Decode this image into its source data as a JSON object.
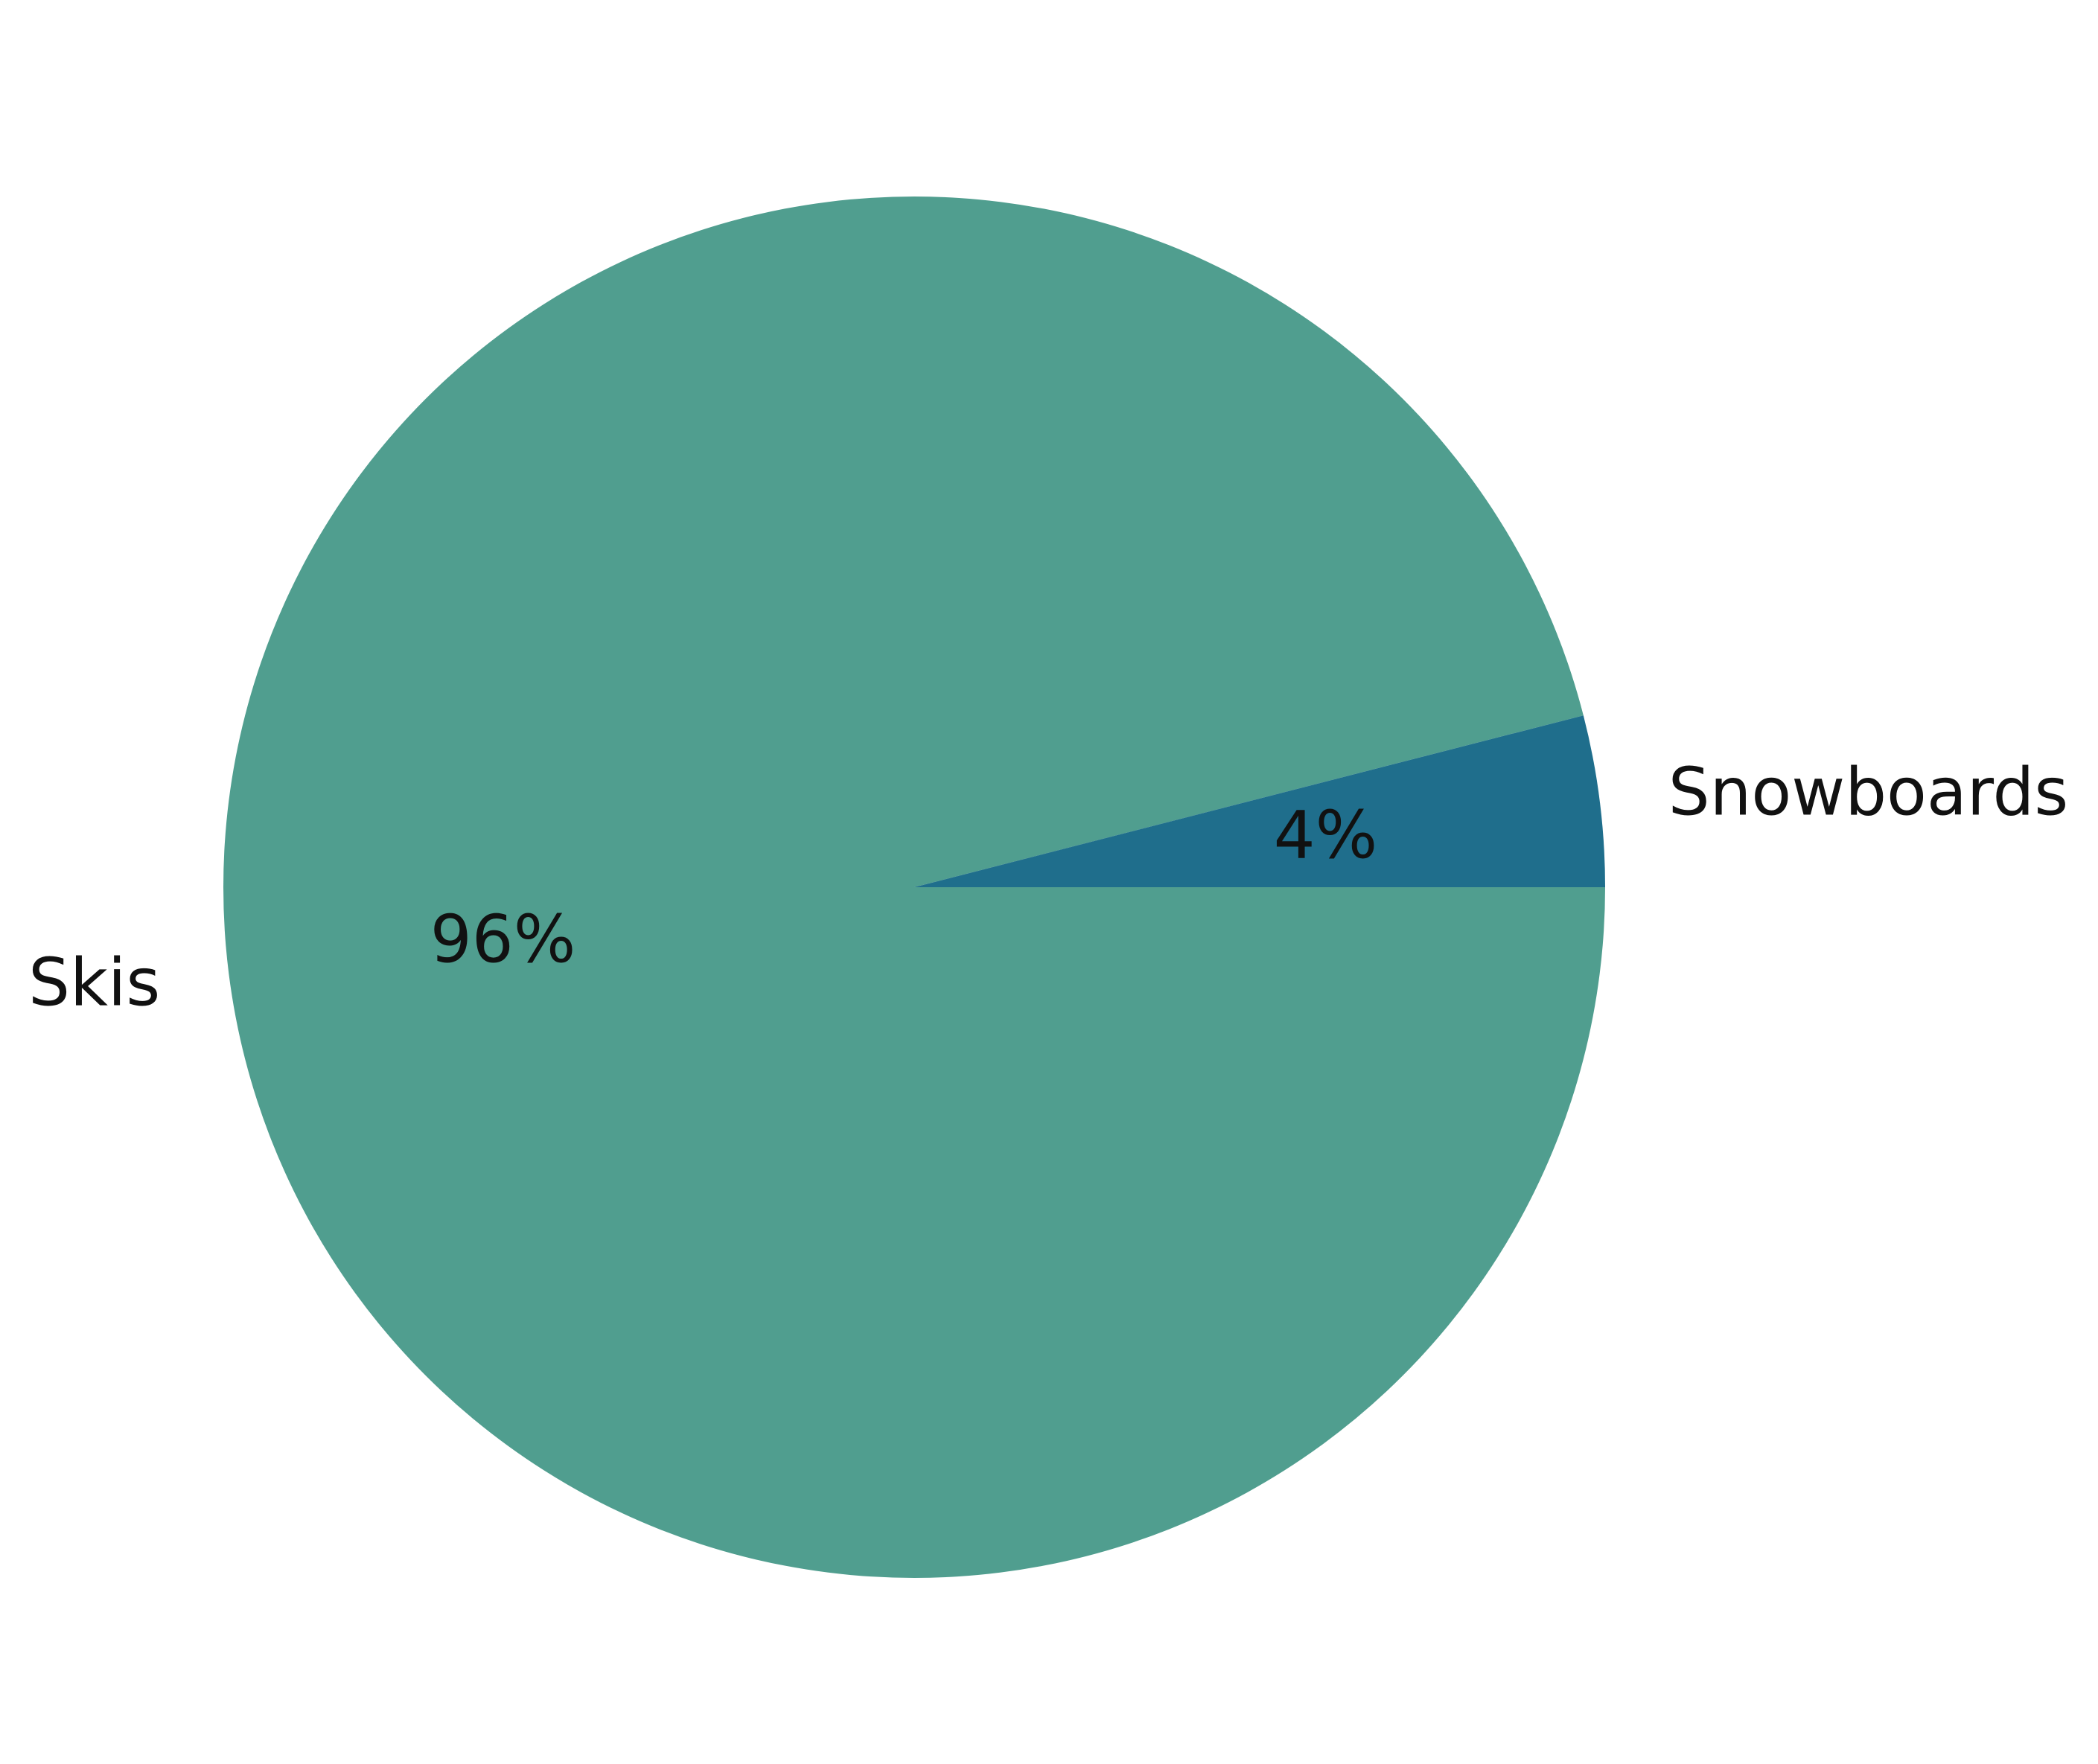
{
  "chart_data": {
    "type": "pie",
    "slices": [
      {
        "label": "Skis",
        "value": 96,
        "pct_label": "96%",
        "color": "#509E8F"
      },
      {
        "label": "Snowboards",
        "value": 4,
        "pct_label": "4%",
        "color": "#1F6E8C"
      }
    ],
    "start_angle_deg": 0,
    "direction": "clockwise-on-screen",
    "legend": "none"
  }
}
